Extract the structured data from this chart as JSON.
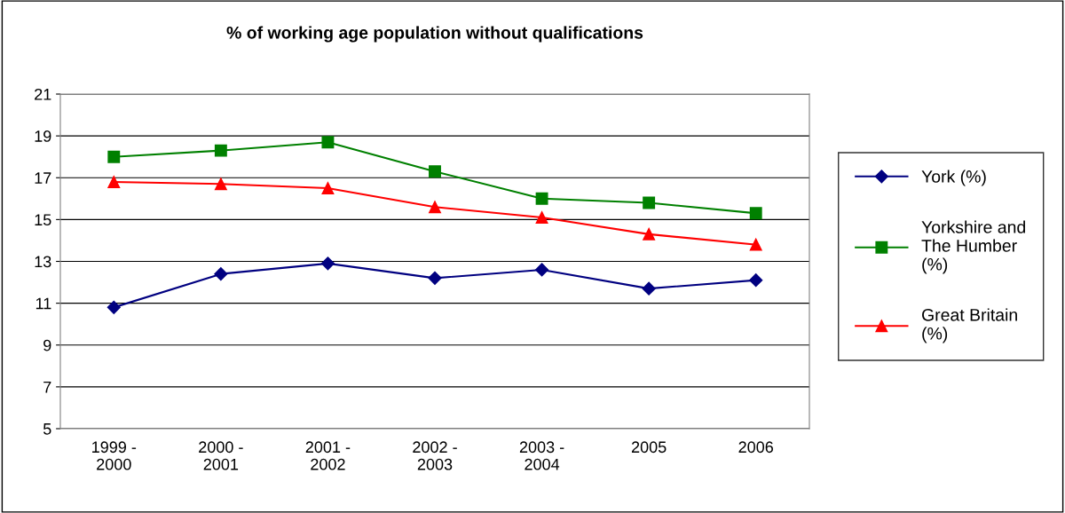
{
  "chart_data": {
    "type": "line",
    "title": "% of working age population without qualifications",
    "categories": [
      "1999 -\n2000",
      "2000 -\n2001",
      "2001 -\n2002",
      "2002 -\n2003",
      "2003 -\n2004",
      "2005",
      "2006"
    ],
    "series": [
      {
        "name": "York (%)",
        "color": "#000080",
        "marker": "diamond",
        "values": [
          10.8,
          12.4,
          12.9,
          12.2,
          12.6,
          11.7,
          12.1
        ]
      },
      {
        "name": "Yorkshire and\nThe Humber\n(%)",
        "color": "#008000",
        "marker": "square",
        "values": [
          18.0,
          18.3,
          18.7,
          17.3,
          16.0,
          15.8,
          15.3
        ]
      },
      {
        "name": "Great Britain\n(%)",
        "color": "#ff0000",
        "marker": "triangle",
        "values": [
          16.8,
          16.7,
          16.5,
          15.6,
          15.1,
          14.3,
          13.8
        ]
      }
    ],
    "ylim": [
      5,
      21
    ],
    "yticks": [
      5,
      7,
      9,
      11,
      13,
      15,
      17,
      19,
      21
    ],
    "grid": "y",
    "legend": "right"
  }
}
